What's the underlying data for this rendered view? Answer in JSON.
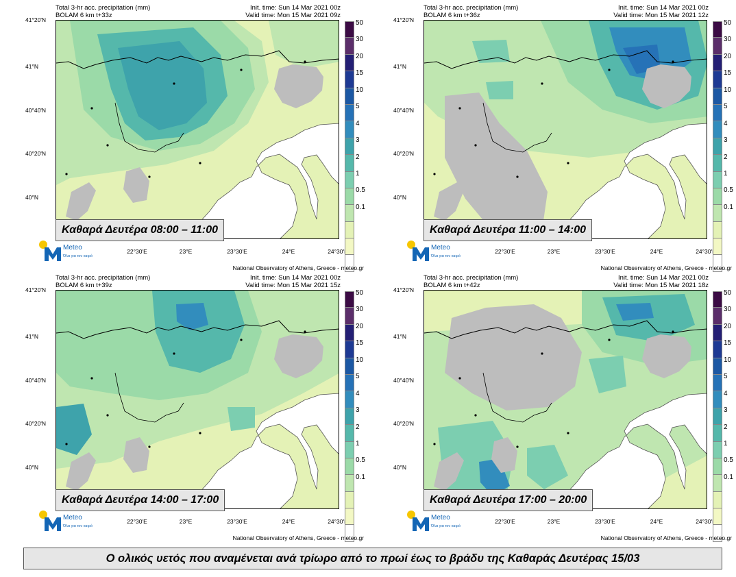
{
  "colors": {
    "bins": [
      "#ffffff",
      "#f3f8c4",
      "#e4f2b6",
      "#bfe6b0",
      "#9bdaa8",
      "#7cceb0",
      "#55b8ab",
      "#3ea3ab",
      "#328dbd",
      "#2672b7",
      "#1c58a4",
      "#1e3a94",
      "#241f75",
      "#5b2e6a",
      "#3b0b44"
    ],
    "no_data": "#bdbdbd",
    "borders": "#000000",
    "coast": "#555555",
    "caption_bg": "#e6e6e6",
    "logo_blue": "#1466b5",
    "logo_yellow": "#f7c600"
  },
  "colorbar": [
    "0.1",
    "0.5",
    "1",
    "2",
    "3",
    "4",
    "5",
    "10",
    "15",
    "20",
    "30",
    "50"
  ],
  "lat_labels": [
    "41°20'N",
    "41°N",
    "40°40'N",
    "40°20'N",
    "40°N"
  ],
  "lon_labels": [
    "22°30'E",
    "23°E",
    "23°30'E",
    "24°E",
    "24°30'E"
  ],
  "logo": {
    "name": "Meteo",
    "tagline": "Όλα για τον καιρό"
  },
  "credit": "National Observatory of Athens, Greece - meteo.gr",
  "panels": [
    {
      "title": "Total 3-hr acc. precipitation (mm)",
      "model": "BOLAM 6 km t+33z",
      "init": "Init. time: Sun 14 Mar 2021 00z",
      "valid": "Valid time: Mon 15 Mar 2021 09z",
      "ribbon": "Καθαρά Δευτέρα 08:00 – 11:00",
      "max_level": 10,
      "core": "west"
    },
    {
      "title": "Total 3-hr acc. precipitation (mm)",
      "model": "BOLAM 6 km t+36z",
      "init": "Init. time: Sun 14 Mar 2021 00z",
      "valid": "Valid time: Mon 15 Mar 2021 12z",
      "ribbon": "Καθαρά Δευτέρα 11:00 – 14:00",
      "max_level": 15,
      "core": "northeast"
    },
    {
      "title": "Total 3-hr acc. precipitation (mm)",
      "model": "BOLAM 6 km t+39z",
      "init": "Init. time: Sun 14 Mar 2021 00z",
      "valid": "Valid time: Mon 15 Mar 2021 15z",
      "ribbon": "Καθαρά Δευτέρα 14:00 – 17:00",
      "max_level": 10,
      "core": "north"
    },
    {
      "title": "Total 3-hr acc. precipitation (mm)",
      "model": "BOLAM 6 km t+42z",
      "init": "Init. time: Sun 14 Mar 2021 00z",
      "valid": "Valid time: Mon 15 Mar 2021 18z",
      "ribbon": "Καθαρά Δευτέρα 17:00 – 20:00",
      "max_level": 15,
      "core": "northeast-southwest"
    }
  ],
  "caption": "Ο ολικός υετός που αναμένεται ανά τρίωρο από το πρωί έως το βράδυ της Καθαράς Δευτέρας 15/03"
}
